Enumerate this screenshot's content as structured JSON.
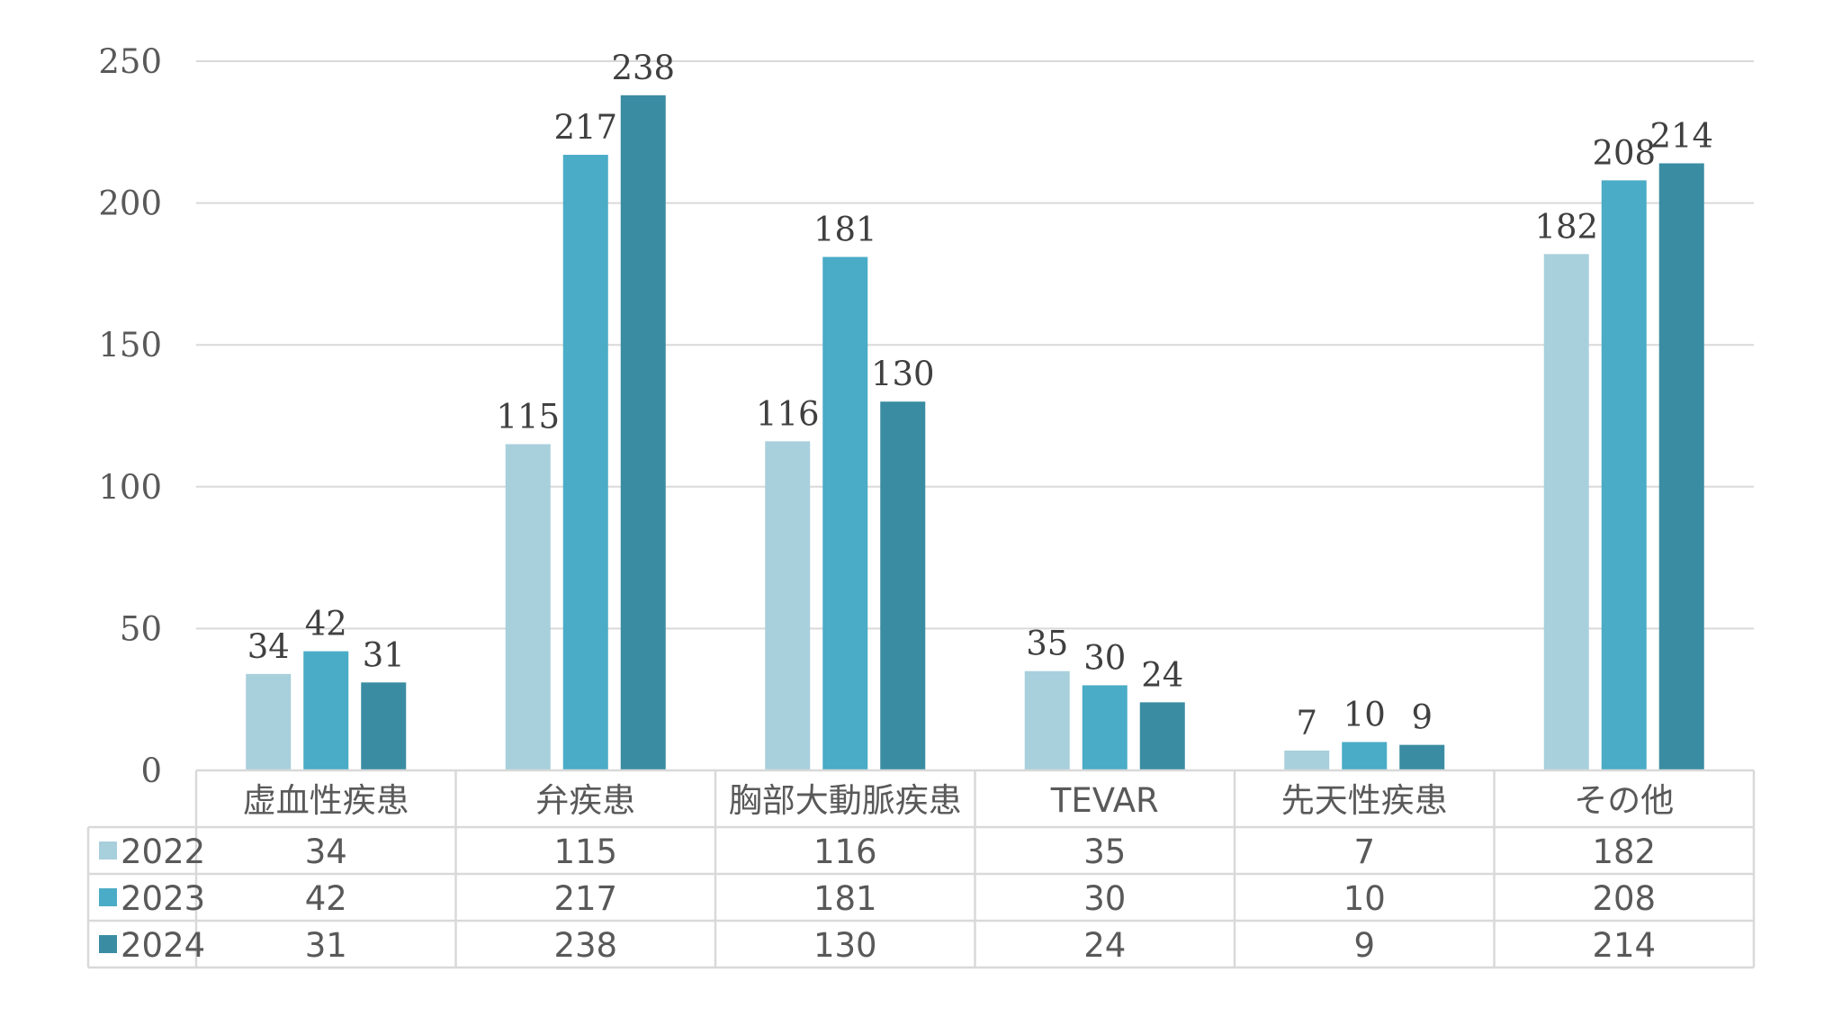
{
  "chart_data": {
    "type": "bar",
    "categories": [
      "虚血性疾患",
      "弁疾患",
      "胸部大動脈疾患",
      "TEVAR",
      "先天性疾患",
      "その他"
    ],
    "series": [
      {
        "name": "2022",
        "color": "#a8cfdc",
        "values": [
          34,
          115,
          116,
          35,
          7,
          182
        ]
      },
      {
        "name": "2023",
        "color": "#4aacc6",
        "values": [
          42,
          217,
          181,
          30,
          10,
          208
        ]
      },
      {
        "name": "2024",
        "color": "#3a8ca2",
        "values": [
          31,
          238,
          130,
          24,
          9,
          214
        ]
      }
    ],
    "ylim": [
      0,
      250
    ],
    "yticks": [
      "0",
      "50",
      "100",
      "150",
      "200",
      "250"
    ],
    "grid": true,
    "data_table": true,
    "legend": "data-table",
    "title": "",
    "xlabel": "",
    "ylabel": ""
  }
}
